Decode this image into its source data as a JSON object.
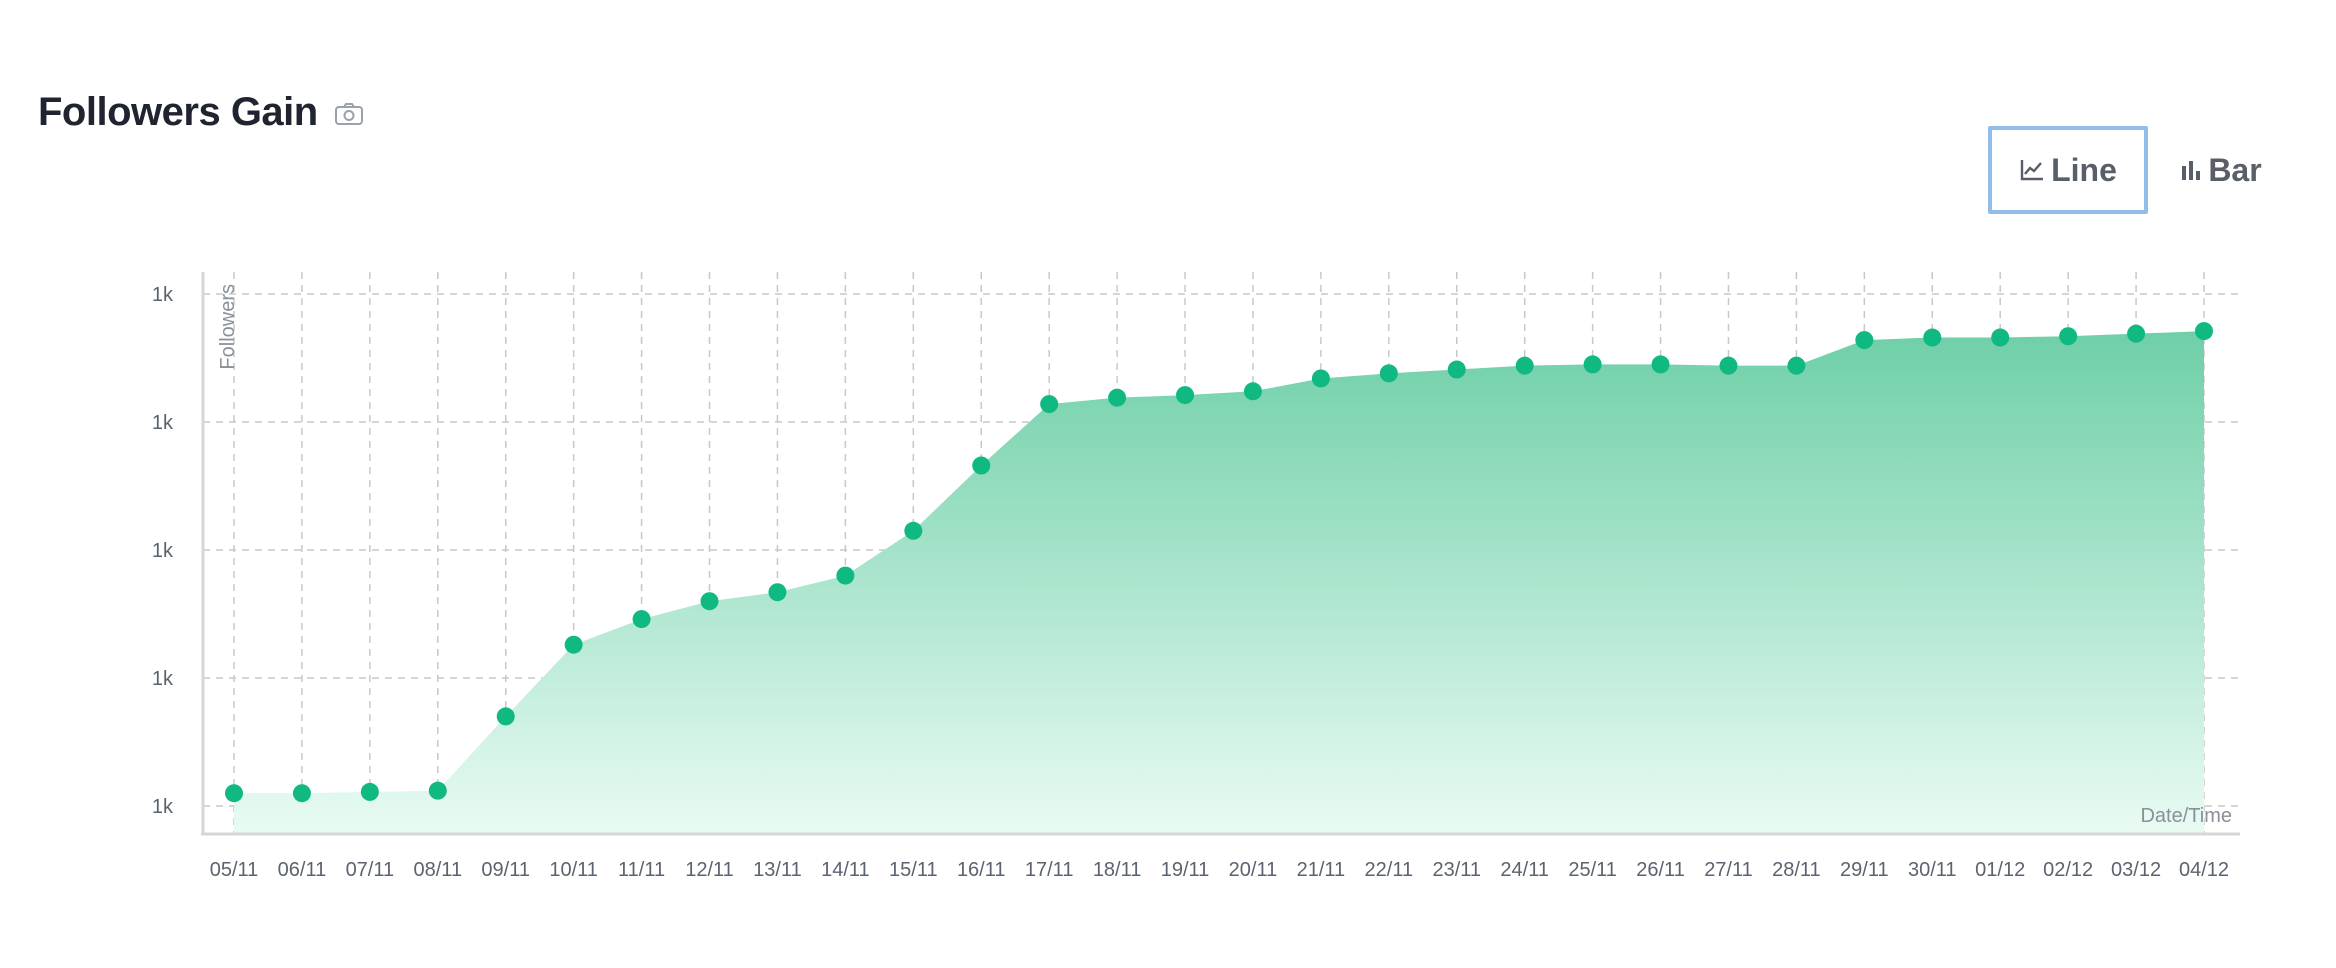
{
  "header": {
    "title": "Followers Gain",
    "camera_icon": "camera-icon"
  },
  "toggles": {
    "line_label": "Line",
    "bar_label": "Bar",
    "line_icon": "line-chart-icon",
    "bar_icon": "bar-chart-icon",
    "selected": "line"
  },
  "colors": {
    "accent": "#10b981",
    "area_top": "#6ecfa8",
    "area_bottom": "#e9fbf3",
    "selected_border": "#92bde8",
    "grid": "#c8c8c8"
  },
  "chart_data": {
    "type": "area",
    "ylabel": "Followers",
    "xlabel": "Date/Time",
    "y_tick_labels": [
      "1k",
      "1k",
      "1k",
      "1k",
      "1k"
    ],
    "ylim": [
      1000,
      1400
    ],
    "grid": true,
    "categories": [
      "05/11",
      "06/11",
      "07/11",
      "08/11",
      "09/11",
      "10/11",
      "11/11",
      "12/11",
      "13/11",
      "14/11",
      "15/11",
      "16/11",
      "17/11",
      "18/11",
      "19/11",
      "20/11",
      "21/11",
      "22/11",
      "23/11",
      "24/11",
      "25/11",
      "26/11",
      "27/11",
      "28/11",
      "29/11",
      "30/11",
      "01/12",
      "02/12",
      "03/12",
      "04/12"
    ],
    "series": [
      {
        "values": [
          1010,
          1010,
          1011,
          1012,
          1070,
          1126,
          1146,
          1160,
          1167,
          1180,
          1215,
          1266,
          1314,
          1319,
          1321,
          1324,
          1334,
          1338,
          1341,
          1344,
          1345,
          1345,
          1344,
          1344,
          1364,
          1366,
          1366,
          1367,
          1369,
          1371
        ]
      }
    ]
  }
}
